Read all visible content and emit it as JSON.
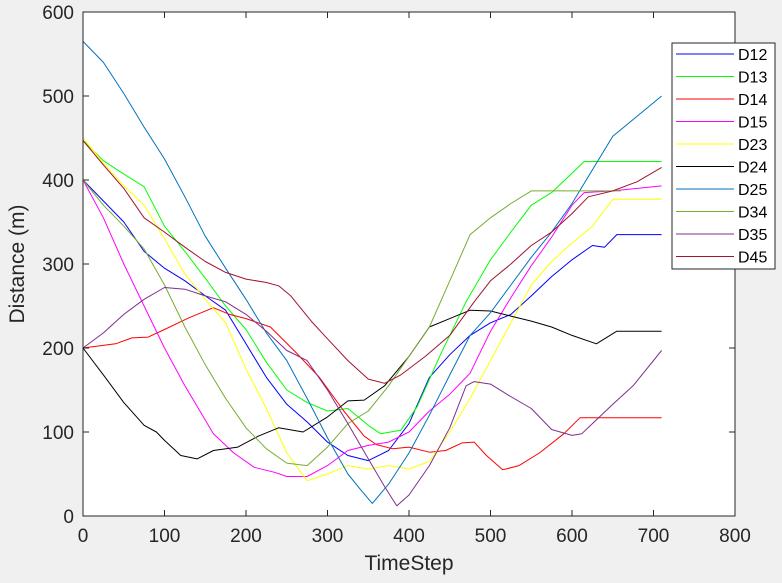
{
  "chart_data": {
    "type": "line",
    "title": "",
    "xlabel": "TimeStep",
    "ylabel": "Distance (m)",
    "xlim": [
      0,
      800
    ],
    "ylim": [
      0,
      600
    ],
    "xticks": [
      0,
      100,
      200,
      300,
      400,
      500,
      600,
      700,
      800
    ],
    "yticks": [
      0,
      100,
      200,
      300,
      400,
      500,
      600
    ],
    "grid": false,
    "legend_position": "top-right",
    "series": [
      {
        "name": "D12",
        "color": "#0000ff",
        "points": [
          [
            0,
            400
          ],
          [
            25,
            375
          ],
          [
            50,
            350
          ],
          [
            75,
            315
          ],
          [
            100,
            295
          ],
          [
            125,
            280
          ],
          [
            150,
            262
          ],
          [
            175,
            245
          ],
          [
            200,
            205
          ],
          [
            225,
            165
          ],
          [
            250,
            133
          ],
          [
            275,
            112
          ],
          [
            300,
            88
          ],
          [
            325,
            72
          ],
          [
            350,
            66
          ],
          [
            375,
            78
          ],
          [
            400,
            110
          ],
          [
            425,
            165
          ],
          [
            450,
            192
          ],
          [
            475,
            215
          ],
          [
            500,
            230
          ],
          [
            525,
            240
          ],
          [
            550,
            262
          ],
          [
            575,
            285
          ],
          [
            600,
            305
          ],
          [
            625,
            322
          ],
          [
            640,
            320
          ],
          [
            655,
            335
          ],
          [
            710,
            335
          ]
        ]
      },
      {
        "name": "D13",
        "color": "#00ff00",
        "points": [
          [
            0,
            447
          ],
          [
            25,
            423
          ],
          [
            50,
            407
          ],
          [
            75,
            392
          ],
          [
            100,
            345
          ],
          [
            125,
            315
          ],
          [
            150,
            283
          ],
          [
            175,
            250
          ],
          [
            200,
            222
          ],
          [
            225,
            183
          ],
          [
            250,
            150
          ],
          [
            275,
            135
          ],
          [
            300,
            125
          ],
          [
            325,
            128
          ],
          [
            350,
            108
          ],
          [
            365,
            98
          ],
          [
            390,
            102
          ],
          [
            410,
            130
          ],
          [
            440,
            195
          ],
          [
            470,
            255
          ],
          [
            500,
            305
          ],
          [
            525,
            338
          ],
          [
            550,
            370
          ],
          [
            575,
            385
          ],
          [
            600,
            408
          ],
          [
            615,
            422
          ],
          [
            710,
            422
          ]
        ]
      },
      {
        "name": "D14",
        "color": "#ff0000",
        "points": [
          [
            0,
            200
          ],
          [
            40,
            205
          ],
          [
            60,
            212
          ],
          [
            80,
            213
          ],
          [
            100,
            222
          ],
          [
            130,
            236
          ],
          [
            160,
            248
          ],
          [
            180,
            240
          ],
          [
            200,
            235
          ],
          [
            230,
            225
          ],
          [
            260,
            196
          ],
          [
            290,
            165
          ],
          [
            320,
            125
          ],
          [
            345,
            95
          ],
          [
            360,
            85
          ],
          [
            380,
            80
          ],
          [
            400,
            82
          ],
          [
            425,
            76
          ],
          [
            445,
            78
          ],
          [
            465,
            87
          ],
          [
            480,
            88
          ],
          [
            495,
            72
          ],
          [
            515,
            55
          ],
          [
            535,
            60
          ],
          [
            560,
            75
          ],
          [
            590,
            98
          ],
          [
            610,
            117
          ],
          [
            710,
            117
          ]
        ]
      },
      {
        "name": "D15",
        "color": "#ff00ff",
        "points": [
          [
            0,
            400
          ],
          [
            25,
            355
          ],
          [
            50,
            300
          ],
          [
            75,
            250
          ],
          [
            100,
            200
          ],
          [
            125,
            155
          ],
          [
            160,
            98
          ],
          [
            185,
            75
          ],
          [
            210,
            58
          ],
          [
            235,
            52
          ],
          [
            250,
            47
          ],
          [
            275,
            47
          ],
          [
            300,
            60
          ],
          [
            325,
            78
          ],
          [
            350,
            84
          ],
          [
            375,
            88
          ],
          [
            400,
            100
          ],
          [
            425,
            125
          ],
          [
            450,
            145
          ],
          [
            475,
            170
          ],
          [
            500,
            220
          ],
          [
            525,
            260
          ],
          [
            550,
            298
          ],
          [
            575,
            332
          ],
          [
            600,
            370
          ],
          [
            615,
            385
          ],
          [
            650,
            387
          ],
          [
            710,
            393
          ]
        ]
      },
      {
        "name": "D23",
        "color": "#ffff00",
        "points": [
          [
            0,
            450
          ],
          [
            25,
            420
          ],
          [
            50,
            393
          ],
          [
            75,
            370
          ],
          [
            100,
            330
          ],
          [
            125,
            288
          ],
          [
            150,
            258
          ],
          [
            175,
            230
          ],
          [
            200,
            175
          ],
          [
            225,
            128
          ],
          [
            250,
            75
          ],
          [
            275,
            42
          ],
          [
            300,
            50
          ],
          [
            325,
            60
          ],
          [
            350,
            56
          ],
          [
            375,
            60
          ],
          [
            400,
            56
          ],
          [
            425,
            65
          ],
          [
            450,
            100
          ],
          [
            475,
            140
          ],
          [
            500,
            185
          ],
          [
            525,
            230
          ],
          [
            550,
            275
          ],
          [
            575,
            303
          ],
          [
            600,
            325
          ],
          [
            625,
            345
          ],
          [
            650,
            377
          ],
          [
            710,
            377
          ]
        ]
      },
      {
        "name": "D24",
        "color": "#000000",
        "points": [
          [
            0,
            200
          ],
          [
            25,
            168
          ],
          [
            50,
            135
          ],
          [
            75,
            108
          ],
          [
            90,
            100
          ],
          [
            100,
            90
          ],
          [
            120,
            72
          ],
          [
            140,
            68
          ],
          [
            160,
            78
          ],
          [
            190,
            82
          ],
          [
            215,
            95
          ],
          [
            240,
            105
          ],
          [
            270,
            100
          ],
          [
            300,
            118
          ],
          [
            325,
            137
          ],
          [
            345,
            138
          ],
          [
            370,
            155
          ],
          [
            400,
            190
          ],
          [
            425,
            225
          ],
          [
            450,
            235
          ],
          [
            475,
            245
          ],
          [
            500,
            244
          ],
          [
            525,
            238
          ],
          [
            550,
            232
          ],
          [
            575,
            225
          ],
          [
            600,
            215
          ],
          [
            630,
            205
          ],
          [
            655,
            220
          ],
          [
            710,
            220
          ]
        ]
      },
      {
        "name": "D25",
        "color": "#0072bd",
        "points": [
          [
            0,
            565
          ],
          [
            25,
            540
          ],
          [
            50,
            503
          ],
          [
            75,
            463
          ],
          [
            100,
            425
          ],
          [
            125,
            380
          ],
          [
            150,
            333
          ],
          [
            175,
            295
          ],
          [
            200,
            258
          ],
          [
            225,
            218
          ],
          [
            250,
            185
          ],
          [
            275,
            140
          ],
          [
            300,
            93
          ],
          [
            325,
            50
          ],
          [
            340,
            32
          ],
          [
            355,
            15
          ],
          [
            375,
            38
          ],
          [
            400,
            75
          ],
          [
            425,
            120
          ],
          [
            450,
            168
          ],
          [
            475,
            215
          ],
          [
            500,
            242
          ],
          [
            525,
            275
          ],
          [
            550,
            308
          ],
          [
            575,
            338
          ],
          [
            600,
            372
          ],
          [
            625,
            412
          ],
          [
            650,
            452
          ],
          [
            710,
            500
          ]
        ]
      },
      {
        "name": "D34",
        "color": "#77ac30",
        "points": [
          [
            0,
            400
          ],
          [
            25,
            370
          ],
          [
            50,
            345
          ],
          [
            75,
            318
          ],
          [
            100,
            275
          ],
          [
            125,
            225
          ],
          [
            150,
            180
          ],
          [
            175,
            140
          ],
          [
            200,
            105
          ],
          [
            225,
            80
          ],
          [
            250,
            63
          ],
          [
            275,
            60
          ],
          [
            300,
            82
          ],
          [
            325,
            110
          ],
          [
            350,
            125
          ],
          [
            375,
            155
          ],
          [
            400,
            190
          ],
          [
            425,
            225
          ],
          [
            450,
            280
          ],
          [
            475,
            335
          ],
          [
            500,
            355
          ],
          [
            525,
            372
          ],
          [
            550,
            387
          ],
          [
            600,
            387
          ],
          [
            660,
            387
          ]
        ]
      },
      {
        "name": "D35",
        "color": "#7e2f8e",
        "points": [
          [
            0,
            200
          ],
          [
            25,
            218
          ],
          [
            50,
            240
          ],
          [
            75,
            258
          ],
          [
            100,
            272
          ],
          [
            125,
            270
          ],
          [
            150,
            262
          ],
          [
            175,
            255
          ],
          [
            200,
            240
          ],
          [
            225,
            220
          ],
          [
            250,
            197
          ],
          [
            275,
            185
          ],
          [
            300,
            150
          ],
          [
            325,
            110
          ],
          [
            350,
            68
          ],
          [
            370,
            35
          ],
          [
            385,
            12
          ],
          [
            400,
            25
          ],
          [
            425,
            60
          ],
          [
            450,
            105
          ],
          [
            470,
            155
          ],
          [
            480,
            160
          ],
          [
            500,
            157
          ],
          [
            520,
            145
          ],
          [
            550,
            128
          ],
          [
            575,
            103
          ],
          [
            600,
            96
          ],
          [
            612,
            98
          ],
          [
            625,
            110
          ],
          [
            650,
            133
          ],
          [
            675,
            155
          ],
          [
            710,
            197
          ]
        ]
      },
      {
        "name": "D45",
        "color": "#a2142f",
        "points": [
          [
            0,
            447
          ],
          [
            25,
            418
          ],
          [
            50,
            390
          ],
          [
            75,
            355
          ],
          [
            100,
            338
          ],
          [
            125,
            320
          ],
          [
            150,
            303
          ],
          [
            175,
            290
          ],
          [
            200,
            282
          ],
          [
            225,
            278
          ],
          [
            240,
            274
          ],
          [
            255,
            262
          ],
          [
            280,
            232
          ],
          [
            300,
            211
          ],
          [
            325,
            185
          ],
          [
            350,
            163
          ],
          [
            370,
            158
          ],
          [
            390,
            168
          ],
          [
            420,
            190
          ],
          [
            450,
            215
          ],
          [
            480,
            255
          ],
          [
            500,
            280
          ],
          [
            525,
            300
          ],
          [
            550,
            322
          ],
          [
            575,
            338
          ],
          [
            600,
            360
          ],
          [
            620,
            380
          ],
          [
            650,
            387
          ],
          [
            680,
            398
          ],
          [
            710,
            415
          ]
        ]
      }
    ]
  }
}
